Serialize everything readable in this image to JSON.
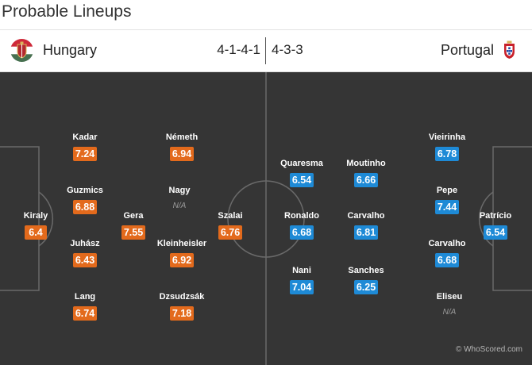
{
  "page": {
    "title": "Probable Lineups"
  },
  "match": {
    "home": {
      "team": "Hungary",
      "formation": "4-1-4-1",
      "accent": "#e36a1c"
    },
    "away": {
      "team": "Portugal",
      "formation": "4-3-3",
      "accent": "#1e8ad6"
    }
  },
  "players": {
    "home": [
      {
        "name": "Kiraly",
        "rating": "6.4"
      },
      {
        "name": "Kadar",
        "rating": "7.24"
      },
      {
        "name": "Guzmics",
        "rating": "6.88"
      },
      {
        "name": "Juhász",
        "rating": "6.43"
      },
      {
        "name": "Lang",
        "rating": "6.74"
      },
      {
        "name": "Gera",
        "rating": "7.55"
      },
      {
        "name": "Németh",
        "rating": "6.94"
      },
      {
        "name": "Nagy",
        "rating": "N/A"
      },
      {
        "name": "Kleinheisler",
        "rating": "6.92"
      },
      {
        "name": "Dzsudzsák",
        "rating": "7.18"
      },
      {
        "name": "Szalai",
        "rating": "6.76"
      }
    ],
    "away": [
      {
        "name": "Quaresma",
        "rating": "6.54"
      },
      {
        "name": "Ronaldo",
        "rating": "6.68"
      },
      {
        "name": "Nani",
        "rating": "7.04"
      },
      {
        "name": "Moutinho",
        "rating": "6.66"
      },
      {
        "name": "Carvalho",
        "rating": "6.81"
      },
      {
        "name": "Sanches",
        "rating": "6.25"
      },
      {
        "name": "Vieirinha",
        "rating": "6.78"
      },
      {
        "name": "Pepe",
        "rating": "7.44"
      },
      {
        "name": "Carvalho",
        "rating": "6.68"
      },
      {
        "name": "Eliseu",
        "rating": "N/A"
      },
      {
        "name": "Patrício",
        "rating": "6.54"
      }
    ]
  },
  "credit": "© WhoScored.com",
  "icons": {
    "home_flag": "hungary-crest-icon",
    "away_flag": "portugal-crest-icon"
  }
}
